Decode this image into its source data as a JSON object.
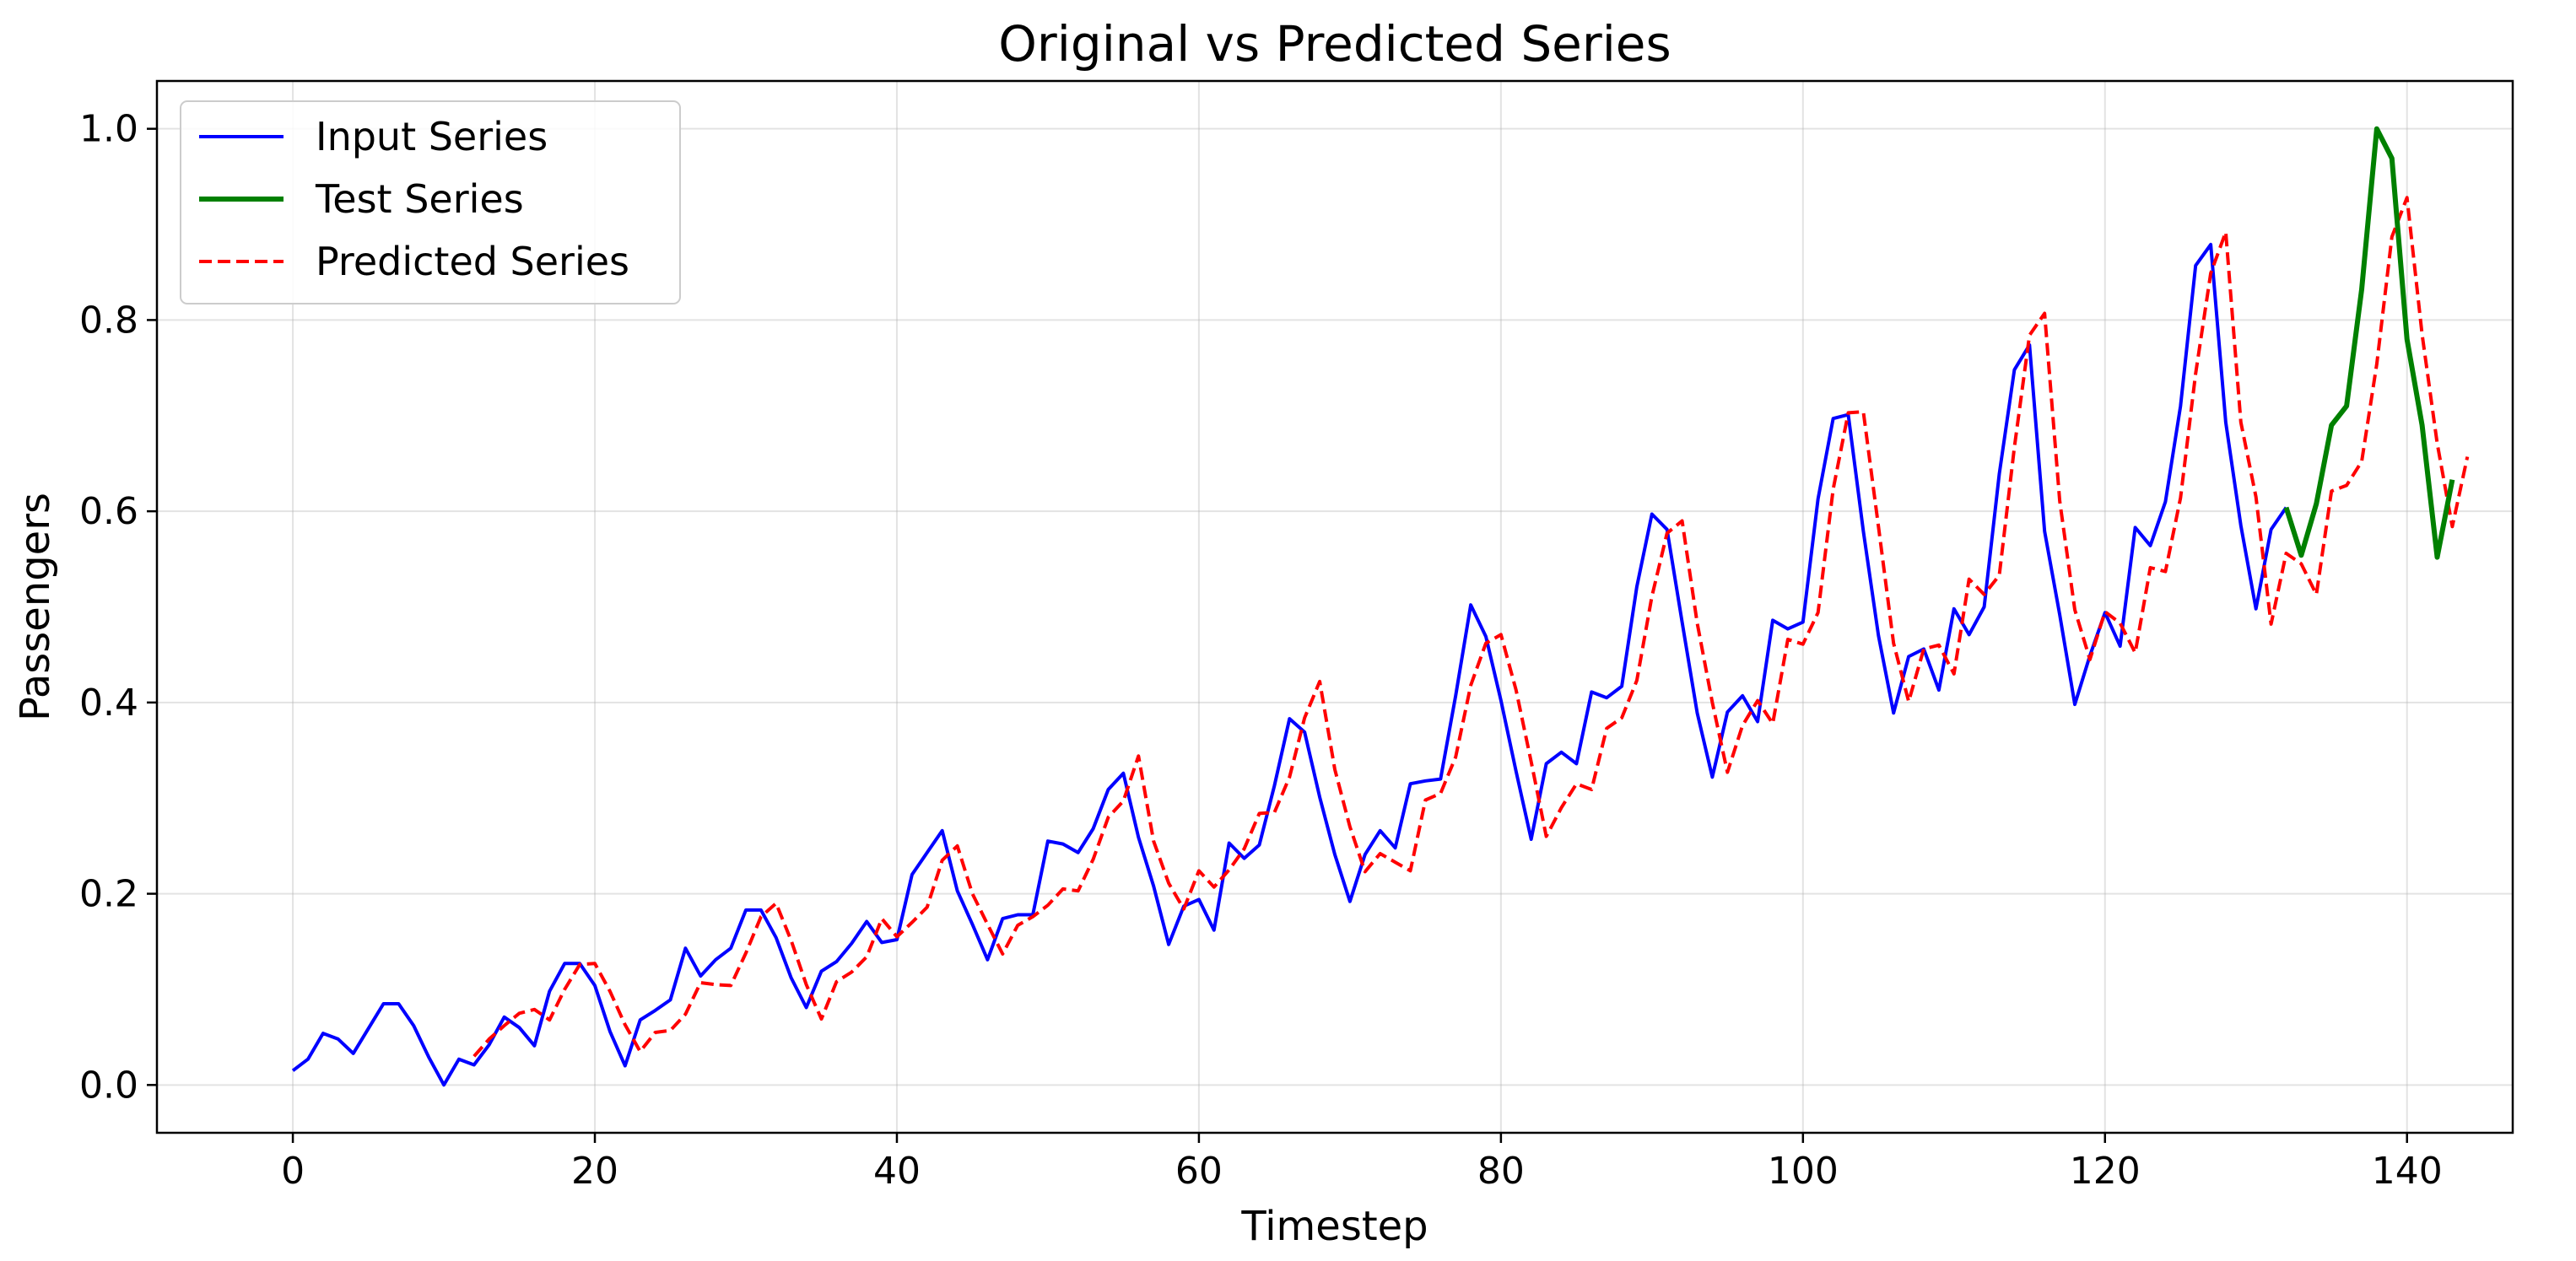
{
  "chart_data": {
    "type": "line",
    "title": "Original vs Predicted Series",
    "xlabel": "Timestep",
    "ylabel": "Passengers",
    "xlim": [
      -9,
      147
    ],
    "ylim": [
      -0.05,
      1.05
    ],
    "xticks": [
      0,
      20,
      40,
      60,
      80,
      100,
      120,
      140
    ],
    "yticks": [
      0.0,
      0.2,
      0.4,
      0.6,
      0.8,
      1.0
    ],
    "xtick_labels": [
      "0",
      "20",
      "40",
      "60",
      "80",
      "100",
      "120",
      "140"
    ],
    "ytick_labels": [
      "0.0",
      "0.2",
      "0.4",
      "0.6",
      "0.8",
      "1.0"
    ],
    "grid": true,
    "legend_position": "top-left",
    "series": [
      {
        "name": "Input Series",
        "color": "#0000ff",
        "style": "solid",
        "x_start": 0,
        "values": [
          0.015,
          0.027,
          0.054,
          0.048,
          0.033,
          0.059,
          0.085,
          0.085,
          0.062,
          0.029,
          0.0,
          0.027,
          0.021,
          0.042,
          0.071,
          0.06,
          0.041,
          0.098,
          0.127,
          0.127,
          0.104,
          0.056,
          0.02,
          0.068,
          0.078,
          0.089,
          0.143,
          0.114,
          0.131,
          0.143,
          0.183,
          0.183,
          0.154,
          0.112,
          0.081,
          0.119,
          0.129,
          0.148,
          0.171,
          0.149,
          0.152,
          0.22,
          0.243,
          0.266,
          0.203,
          0.168,
          0.131,
          0.174,
          0.178,
          0.178,
          0.255,
          0.252,
          0.243,
          0.268,
          0.309,
          0.326,
          0.259,
          0.208,
          0.147,
          0.187,
          0.194,
          0.162,
          0.253,
          0.237,
          0.251,
          0.313,
          0.383,
          0.369,
          0.301,
          0.241,
          0.192,
          0.241,
          0.266,
          0.248,
          0.315,
          0.318,
          0.32,
          0.407,
          0.502,
          0.469,
          0.402,
          0.328,
          0.257,
          0.336,
          0.348,
          0.336,
          0.411,
          0.405,
          0.417,
          0.521,
          0.597,
          0.581,
          0.484,
          0.389,
          0.322,
          0.39,
          0.407,
          0.38,
          0.486,
          0.477,
          0.484,
          0.613,
          0.697,
          0.701,
          0.579,
          0.47,
          0.389,
          0.448,
          0.456,
          0.413,
          0.498,
          0.471,
          0.5,
          0.639,
          0.748,
          0.774,
          0.579,
          0.492,
          0.398,
          0.449,
          0.494,
          0.459,
          0.583,
          0.564,
          0.61,
          0.71,
          0.857,
          0.879,
          0.693,
          0.585,
          0.498,
          0.581,
          0.604
        ]
      },
      {
        "name": "Test Series",
        "color": "#008000",
        "style": "solid",
        "x_start": 132,
        "values": [
          0.604,
          0.554,
          0.608,
          0.69,
          0.71,
          0.832,
          1.0,
          0.969,
          0.78,
          0.69,
          0.552,
          0.633
        ]
      },
      {
        "name": "Predicted Series",
        "color": "#ff0000",
        "style": "dashed",
        "x_start": 12,
        "values": [
          0.03,
          0.048,
          0.062,
          0.075,
          0.079,
          0.068,
          0.1,
          0.126,
          0.127,
          0.098,
          0.063,
          0.035,
          0.055,
          0.057,
          0.074,
          0.107,
          0.105,
          0.104,
          0.138,
          0.176,
          0.19,
          0.151,
          0.105,
          0.069,
          0.108,
          0.118,
          0.134,
          0.174,
          0.155,
          0.17,
          0.186,
          0.235,
          0.25,
          0.2,
          0.168,
          0.137,
          0.167,
          0.176,
          0.188,
          0.205,
          0.203,
          0.236,
          0.28,
          0.297,
          0.344,
          0.255,
          0.211,
          0.184,
          0.224,
          0.207,
          0.225,
          0.247,
          0.284,
          0.285,
          0.322,
          0.384,
          0.422,
          0.33,
          0.27,
          0.223,
          0.242,
          0.233,
          0.224,
          0.298,
          0.305,
          0.343,
          0.418,
          0.462,
          0.471,
          0.413,
          0.338,
          0.26,
          0.29,
          0.315,
          0.309,
          0.373,
          0.384,
          0.423,
          0.511,
          0.577,
          0.59,
          0.483,
          0.4,
          0.327,
          0.376,
          0.402,
          0.378,
          0.466,
          0.461,
          0.494,
          0.623,
          0.703,
          0.704,
          0.584,
          0.462,
          0.401,
          0.456,
          0.46,
          0.43,
          0.529,
          0.513,
          0.533,
          0.667,
          0.784,
          0.807,
          0.611,
          0.497,
          0.445,
          0.495,
          0.483,
          0.452,
          0.541,
          0.537,
          0.614,
          0.744,
          0.849,
          0.892,
          0.693,
          0.615,
          0.482,
          0.556,
          0.545,
          0.513,
          0.621,
          0.627,
          0.652,
          0.754,
          0.887,
          0.928,
          0.785,
          0.671,
          0.584,
          0.657
        ]
      }
    ]
  }
}
